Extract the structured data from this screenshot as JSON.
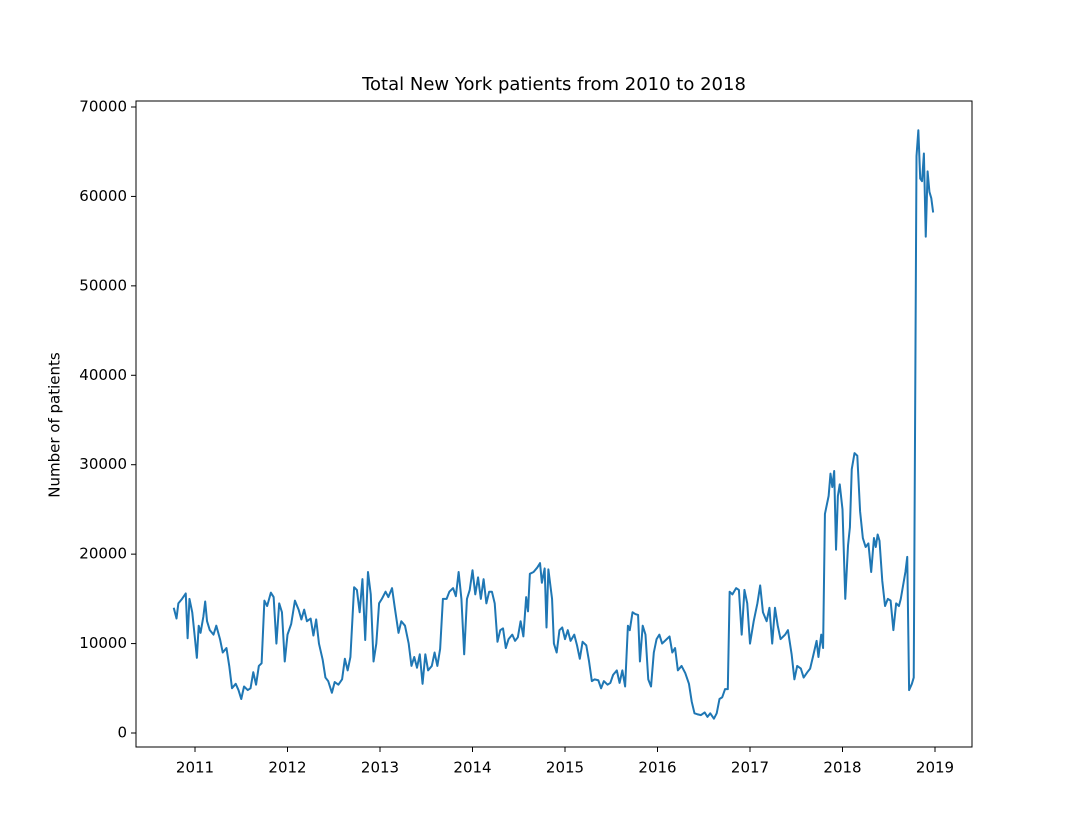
{
  "chart_data": {
    "type": "line",
    "title": "Total New York patients from 2010 to 2018",
    "y_label": "Number of patients",
    "color": "#1f77b4",
    "xlim": [
      2010.362,
      2019.4
    ],
    "xticks": [
      2011,
      2012,
      2013,
      2014,
      2015,
      2016,
      2017,
      2018,
      2019
    ],
    "ylim": [
      -1565,
      70670
    ],
    "yticks": [
      0,
      10000,
      20000,
      30000,
      40000,
      50000,
      60000,
      70000
    ],
    "x": [
      2010.77,
      2010.8,
      2010.82,
      2010.86,
      2010.9,
      2010.92,
      2010.94,
      2010.97,
      2011.0,
      2011.02,
      2011.04,
      2011.06,
      2011.09,
      2011.11,
      2011.13,
      2011.16,
      2011.2,
      2011.23,
      2011.27,
      2011.3,
      2011.34,
      2011.37,
      2011.4,
      2011.44,
      2011.47,
      2011.5,
      2011.53,
      2011.57,
      2011.6,
      2011.63,
      2011.66,
      2011.69,
      2011.72,
      2011.75,
      2011.78,
      2011.82,
      2011.85,
      2011.88,
      2011.91,
      2011.94,
      2011.97,
      2012.0,
      2012.04,
      2012.08,
      2012.12,
      2012.15,
      2012.18,
      2012.21,
      2012.25,
      2012.28,
      2012.31,
      2012.34,
      2012.38,
      2012.41,
      2012.44,
      2012.48,
      2012.51,
      2012.55,
      2012.59,
      2012.62,
      2012.65,
      2012.68,
      2012.72,
      2012.75,
      2012.78,
      2012.81,
      2012.84,
      2012.87,
      2012.9,
      2012.93,
      2012.96,
      2012.99,
      2013.02,
      2013.06,
      2013.09,
      2013.13,
      2013.16,
      2013.2,
      2013.23,
      2013.27,
      2013.31,
      2013.34,
      2013.37,
      2013.4,
      2013.43,
      2013.46,
      2013.49,
      2013.52,
      2013.56,
      2013.59,
      2013.62,
      2013.65,
      2013.68,
      2013.72,
      2013.75,
      2013.79,
      2013.82,
      2013.85,
      2013.88,
      2013.91,
      2013.94,
      2013.97,
      2014.0,
      2014.03,
      2014.06,
      2014.09,
      2014.12,
      2014.15,
      2014.18,
      2014.21,
      2014.24,
      2014.27,
      2014.3,
      2014.33,
      2014.36,
      2014.39,
      2014.43,
      2014.46,
      2014.49,
      2014.52,
      2014.55,
      2014.58,
      2014.6,
      2014.62,
      2014.66,
      2014.7,
      2014.73,
      2014.75,
      2014.78,
      2014.8,
      2014.82,
      2014.86,
      2014.88,
      2014.91,
      2014.94,
      2014.97,
      2015.0,
      2015.03,
      2015.06,
      2015.1,
      2015.13,
      2015.16,
      2015.19,
      2015.23,
      2015.26,
      2015.29,
      2015.32,
      2015.36,
      2015.39,
      2015.42,
      2015.46,
      2015.49,
      2015.52,
      2015.56,
      2015.59,
      2015.62,
      2015.65,
      2015.68,
      2015.7,
      2015.73,
      2015.76,
      2015.79,
      2015.81,
      2015.84,
      2015.87,
      2015.9,
      2015.93,
      2015.96,
      2015.99,
      2016.02,
      2016.05,
      2016.09,
      2016.13,
      2016.16,
      2016.19,
      2016.22,
      2016.26,
      2016.3,
      2016.34,
      2016.37,
      2016.4,
      2016.43,
      2016.47,
      2016.51,
      2016.54,
      2016.57,
      2016.61,
      2016.64,
      2016.67,
      2016.7,
      2016.73,
      2016.76,
      2016.78,
      2016.81,
      2016.85,
      2016.88,
      2016.91,
      2016.94,
      2016.97,
      2017.0,
      2017.04,
      2017.08,
      2017.11,
      2017.14,
      2017.18,
      2017.21,
      2017.24,
      2017.27,
      2017.3,
      2017.33,
      2017.38,
      2017.41,
      2017.45,
      2017.48,
      2017.51,
      2017.55,
      2017.58,
      2017.62,
      2017.65,
      2017.68,
      2017.72,
      2017.74,
      2017.77,
      2017.79,
      2017.81,
      2017.85,
      2017.87,
      2017.89,
      2017.91,
      2017.93,
      2017.95,
      2017.97,
      2018.0,
      2018.03,
      2018.06,
      2018.08,
      2018.1,
      2018.13,
      2018.16,
      2018.19,
      2018.22,
      2018.25,
      2018.28,
      2018.31,
      2018.34,
      2018.36,
      2018.38,
      2018.4,
      2018.43,
      2018.46,
      2018.49,
      2018.52,
      2018.55,
      2018.58,
      2018.61,
      2018.63,
      2018.66,
      2018.68,
      2018.7,
      2018.72,
      2018.75,
      2018.77,
      2018.8,
      2018.82,
      2018.84,
      2018.86,
      2018.88,
      2018.9,
      2018.92,
      2018.94,
      2018.96,
      2018.98
    ],
    "values": [
      14000,
      12800,
      14500,
      15000,
      15600,
      10600,
      15000,
      13500,
      10500,
      8400,
      12000,
      11200,
      13000,
      14700,
      12500,
      11500,
      11000,
      12000,
      10500,
      9000,
      9500,
      7500,
      5000,
      5500,
      4800,
      3800,
      5200,
      4800,
      5000,
      6800,
      5400,
      7500,
      7800,
      14800,
      14200,
      15700,
      15200,
      10000,
      14500,
      13500,
      8000,
      11000,
      12200,
      14800,
      13800,
      12700,
      13800,
      12500,
      12800,
      10900,
      12700,
      10000,
      8200,
      6200,
      5800,
      4500,
      5700,
      5400,
      6000,
      8300,
      7000,
      8500,
      16300,
      16000,
      13500,
      17200,
      10400,
      18000,
      15500,
      8000,
      10000,
      14500,
      15000,
      15800,
      15200,
      16200,
      14000,
      11200,
      12500,
      12000,
      10000,
      7500,
      8500,
      7300,
      8800,
      5500,
      8800,
      7000,
      7500,
      9000,
      7500,
      9400,
      15000,
      15000,
      15800,
      16200,
      15300,
      18000,
      15000,
      8800,
      15000,
      16000,
      18200,
      15500,
      17400,
      15000,
      17200,
      14500,
      15800,
      15800,
      14500,
      10200,
      11500,
      11700,
      9500,
      10500,
      11000,
      10300,
      10700,
      12500,
      10800,
      15200,
      13600,
      17800,
      18000,
      18500,
      19000,
      16800,
      18400,
      11800,
      18300,
      15000,
      10000,
      9000,
      11500,
      11800,
      10500,
      11500,
      10300,
      11000,
      9800,
      8300,
      10200,
      9800,
      8000,
      5800,
      6000,
      5900,
      5000,
      5800,
      5400,
      5600,
      6500,
      7000,
      5600,
      7000,
      5200,
      12000,
      11500,
      13500,
      13300,
      13200,
      8000,
      12000,
      11000,
      6000,
      5200,
      9000,
      10500,
      11000,
      10000,
      10400,
      10800,
      9000,
      9500,
      7000,
      7500,
      6700,
      5500,
      3500,
      2200,
      2100,
      2000,
      2300,
      1800,
      2200,
      1600,
      2200,
      3800,
      4000,
      4900,
      4900,
      15800,
      15500,
      16200,
      16000,
      11000,
      16000,
      14500,
      10000,
      12500,
      14500,
      16500,
      13500,
      12500,
      14000,
      10000,
      14000,
      12000,
      10500,
      11000,
      11500,
      8800,
      6000,
      7500,
      7200,
      6200,
      6800,
      7200,
      8500,
      10300,
      8500,
      11000,
      9500,
      24500,
      26500,
      29000,
      27500,
      29300,
      20500,
      26500,
      27800,
      25000,
      15000,
      21000,
      23000,
      29500,
      31300,
      31000,
      24800,
      21800,
      20800,
      21200,
      18000,
      21800,
      20800,
      22200,
      21500,
      17000,
      14200,
      15000,
      14800,
      11500,
      14500,
      14200,
      15000,
      16800,
      18000,
      19700,
      4800,
      5500,
      6200,
      64500,
      67400,
      62000,
      61700,
      64800,
      55500,
      62800,
      60500,
      59800,
      58200
    ]
  }
}
